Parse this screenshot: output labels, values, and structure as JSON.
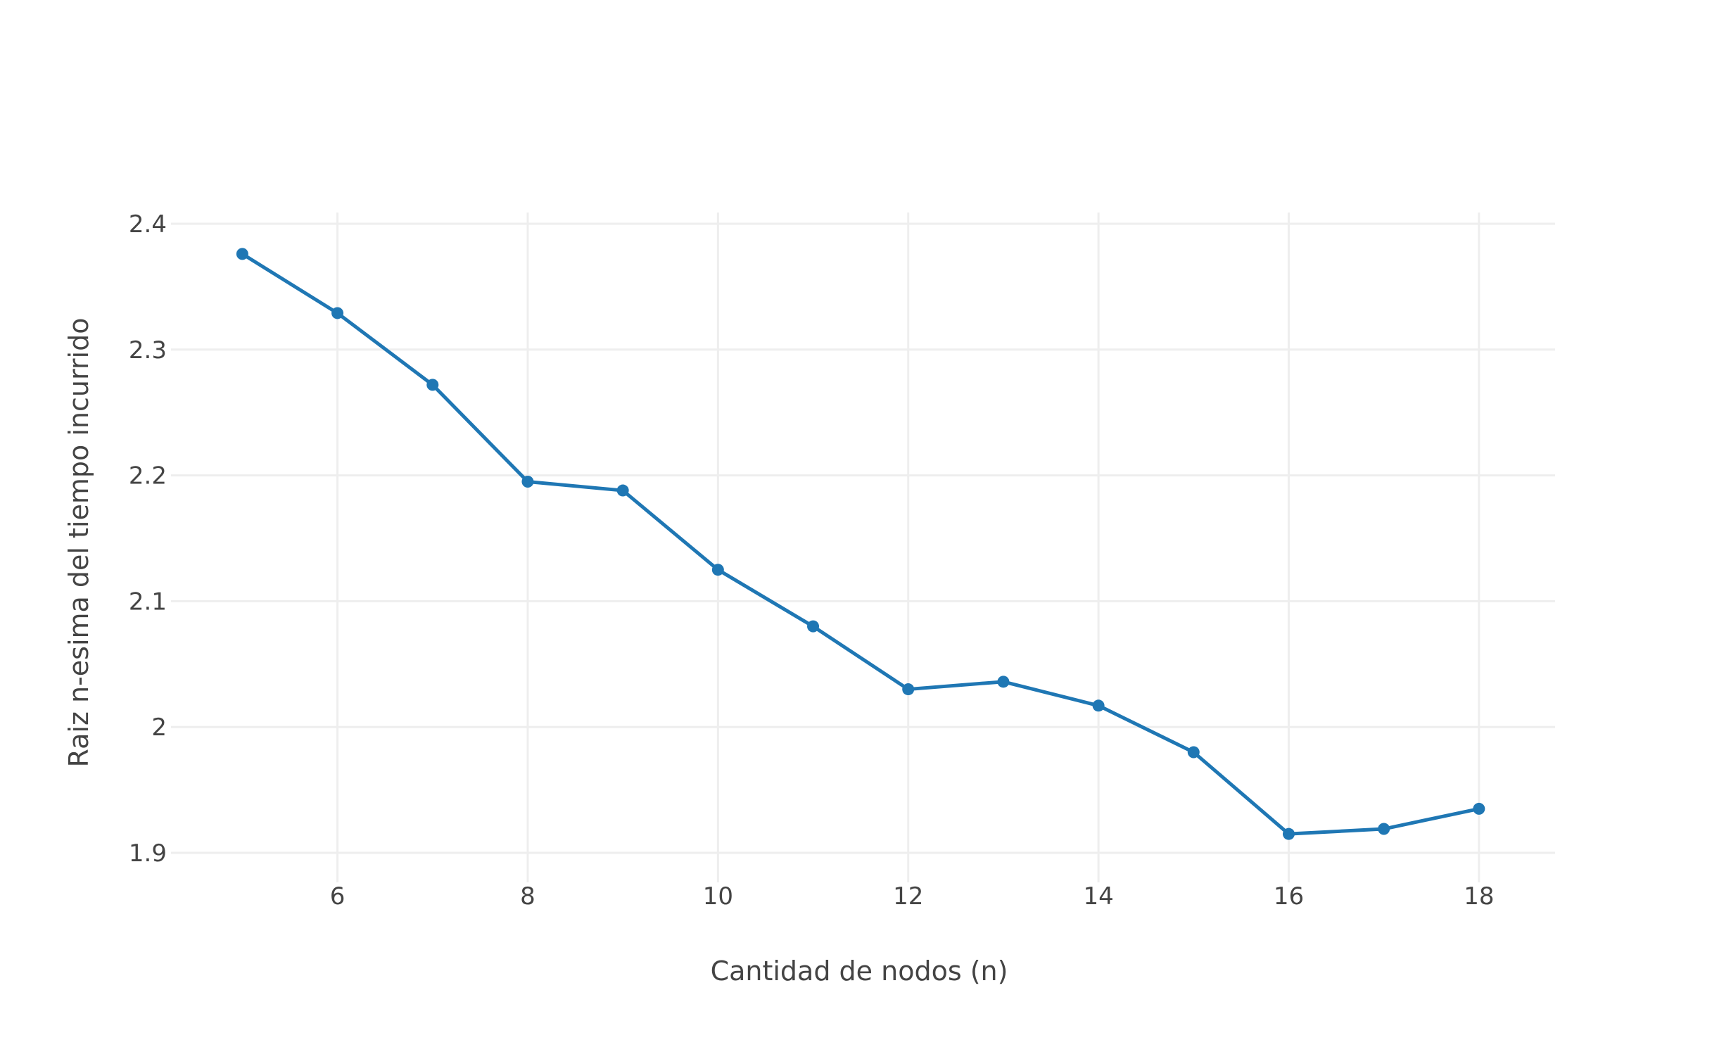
{
  "chart_data": {
    "type": "line",
    "title": "",
    "xlabel": "Cantidad de nodos (n)",
    "ylabel": "Raiz n-esima del tiempo incurrido",
    "xlim": [
      4.25,
      18.8
    ],
    "ylim": [
      1.9,
      2.4
    ],
    "x_ticks": [
      6,
      8,
      10,
      12,
      14,
      16,
      18
    ],
    "y_ticks": [
      1.9,
      2.0,
      2.1,
      2.2,
      2.3,
      2.4
    ],
    "y_tick_labels": [
      "1.9",
      "2",
      "2.1",
      "2.2",
      "2.3",
      "2.4"
    ],
    "grid": true,
    "legend": "none",
    "colors": {
      "series": "#1f77b4",
      "grid": "#eeeeee",
      "text": "#444444"
    },
    "series": [
      {
        "x": [
          5,
          6,
          7,
          8,
          9,
          10,
          11,
          12,
          13,
          14,
          15,
          16,
          17,
          18
        ],
        "y": [
          2.376,
          2.329,
          2.272,
          2.195,
          2.188,
          2.125,
          2.08,
          2.03,
          2.036,
          2.017,
          1.98,
          1.915,
          1.919,
          1.935
        ]
      }
    ]
  }
}
